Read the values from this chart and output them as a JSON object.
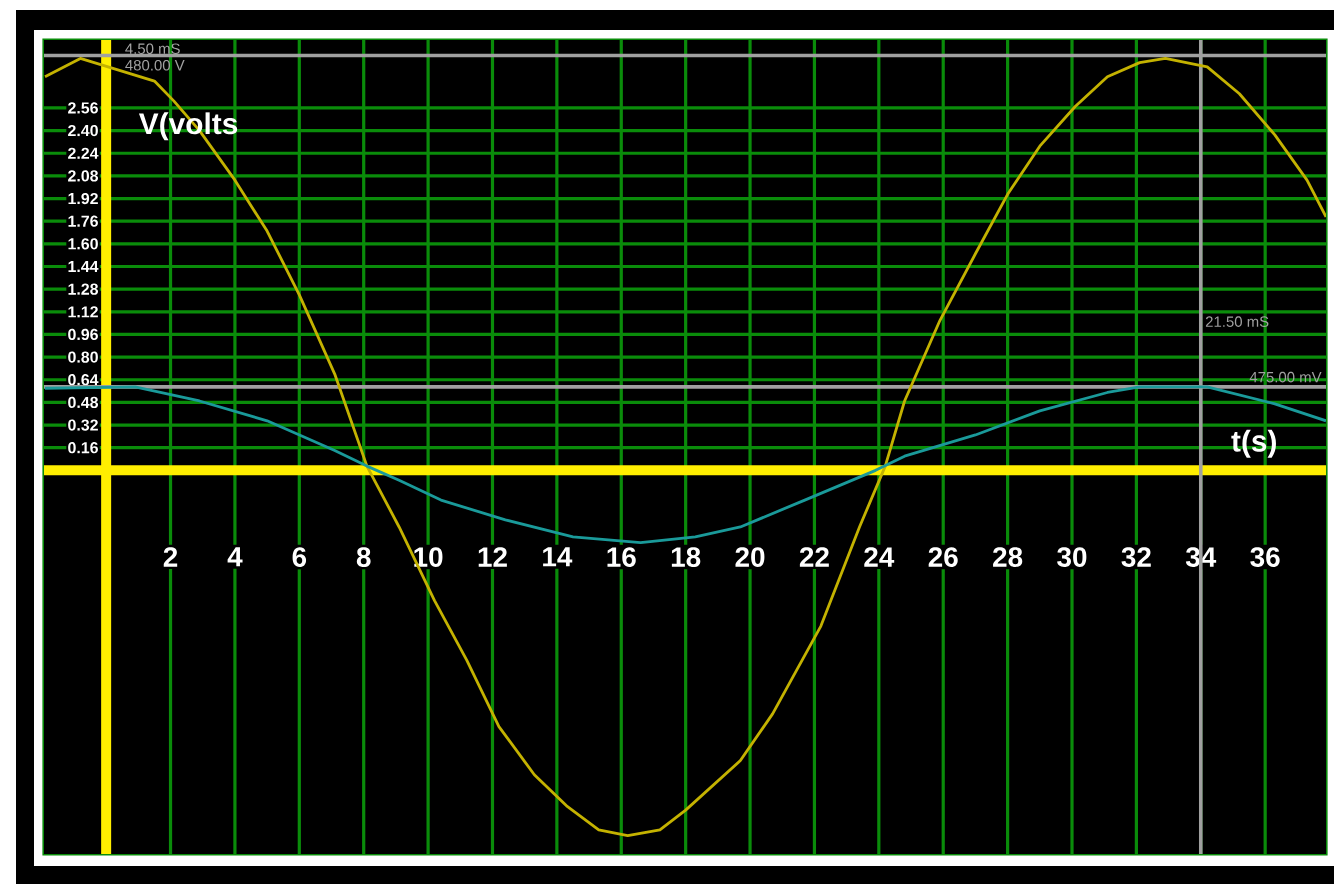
{
  "chart_data": {
    "type": "line",
    "xlabel": "t(s)",
    "ylabel": "V(volts",
    "xlim": [
      -1.93,
      37.89
    ],
    "ylim": [
      -2.71,
      3.04
    ],
    "xticks": [
      2,
      4,
      6,
      8,
      10,
      12,
      14,
      16,
      18,
      20,
      22,
      24,
      26,
      28,
      30,
      32,
      34,
      36
    ],
    "yticks": [
      0.16,
      0.32,
      0.48,
      0.64,
      {
        "value": 0.8,
        "label": "0.80"
      },
      0.96,
      1.12,
      1.28,
      1.44,
      {
        "value": 1.6,
        "label": "1.60"
      },
      1.76,
      1.92,
      2.08,
      2.24,
      {
        "value": 2.4,
        "label": "2.40"
      },
      2.56
    ],
    "grid": true,
    "series": [
      {
        "color": "#c4b200",
        "x": [
          -1.9,
          -0.8,
          1.5,
          2.1,
          2.9,
          4.0,
          5.0,
          6.0,
          7.1,
          8.1,
          9.1,
          10.2,
          11.2,
          12.2,
          13.3,
          14.3,
          15.3,
          16.2,
          17.2,
          18.0,
          19.7,
          20.7,
          22.2,
          23.4,
          24.2,
          24.8,
          25.9,
          27.0,
          28.0,
          29.0,
          30.1,
          31.1,
          32.1,
          32.9,
          34.2,
          35.2,
          36.3,
          37.3,
          37.89
        ],
        "values": [
          2.78,
          2.91,
          2.75,
          2.61,
          2.4,
          2.05,
          1.69,
          1.24,
          0.68,
          0.03,
          -0.4,
          -0.92,
          -1.34,
          -1.81,
          -2.15,
          -2.37,
          -2.54,
          -2.58,
          -2.54,
          -2.4,
          -2.05,
          -1.72,
          -1.1,
          -0.4,
          0.03,
          0.49,
          1.06,
          1.53,
          1.95,
          2.29,
          2.57,
          2.78,
          2.88,
          2.91,
          2.85,
          2.66,
          2.37,
          2.05,
          1.79
        ]
      },
      {
        "color": "#1a9a9a",
        "x": [
          -1.9,
          0.9,
          2.9,
          5.0,
          7.1,
          8.1,
          9.1,
          10.4,
          12.4,
          14.5,
          16.6,
          18.3,
          19.7,
          21.7,
          23.9,
          24.8,
          27.0,
          29.0,
          31.1,
          32.1,
          34.2,
          36.3,
          37.89
        ],
        "values": [
          0.58,
          0.59,
          0.49,
          0.35,
          0.14,
          0.03,
          -0.07,
          -0.21,
          -0.35,
          -0.47,
          -0.51,
          -0.47,
          -0.4,
          -0.21,
          0.0,
          0.1,
          0.25,
          0.42,
          0.55,
          0.59,
          0.59,
          0.47,
          0.35
        ]
      }
    ],
    "ref_lines": [
      {
        "axis": "y",
        "value": 0,
        "color": "#ffee00"
      },
      {
        "axis": "y",
        "value": 2.93,
        "label": "480.00 V",
        "color": "#a0a0a0"
      },
      {
        "axis": "y",
        "value": 0.59,
        "label": "475.00 mV",
        "color": "#a0a0a0"
      },
      {
        "axis": "x",
        "value": 34,
        "label": "21.50 mS",
        "color": "#a0a0a0"
      }
    ],
    "annotations": [
      "4.50 mS"
    ]
  }
}
